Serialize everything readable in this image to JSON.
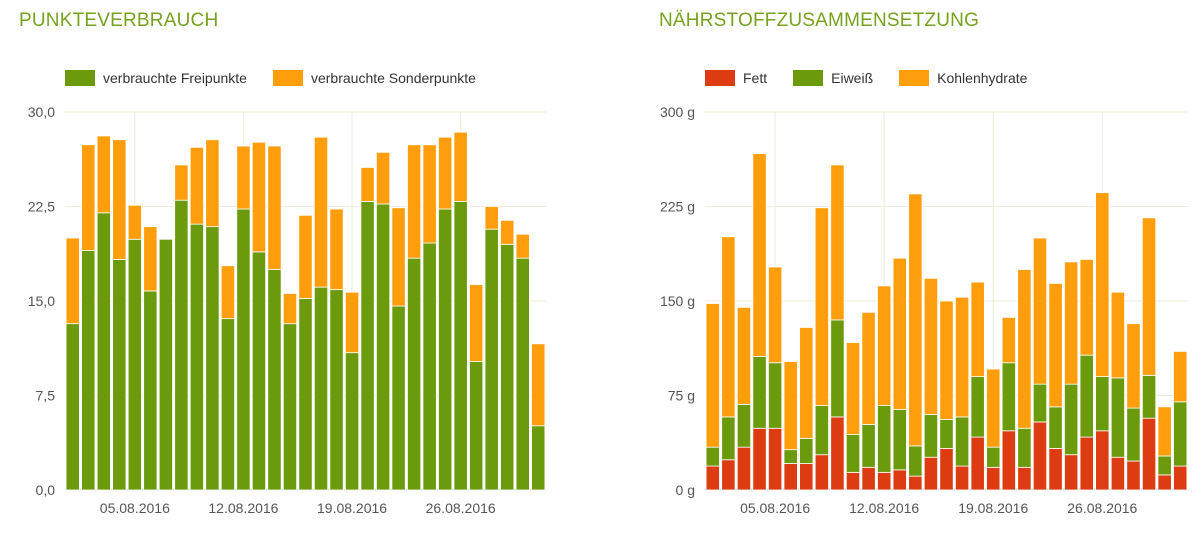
{
  "chart_data": [
    {
      "type": "bar",
      "stacked": true,
      "title": "PUNKTEVERBRAUCH",
      "xlabel": "",
      "ylabel": "",
      "ylim": [
        0,
        30
      ],
      "yticks": [
        "0,0",
        "7,5",
        "15,0",
        "22,5",
        "30,0"
      ],
      "xticks": [
        {
          "label": "05.08.2016",
          "index": 4
        },
        {
          "label": "12.08.2016",
          "index": 11
        },
        {
          "label": "19.08.2016",
          "index": 18
        },
        {
          "label": "26.08.2016",
          "index": 25
        }
      ],
      "grid": true,
      "legend_position": "top-left",
      "series": [
        {
          "name": "verbrauchte Freipunkte",
          "color": "#6b9a0c",
          "values": [
            13.2,
            19.0,
            22.0,
            18.3,
            19.9,
            15.8,
            19.9,
            23.0,
            21.1,
            20.9,
            13.6,
            22.3,
            18.9,
            17.5,
            13.2,
            15.2,
            16.1,
            15.9,
            10.9,
            22.9,
            22.7,
            14.6,
            18.4,
            19.6,
            22.3,
            22.9,
            10.2,
            20.7,
            19.5,
            18.4,
            5.1
          ]
        },
        {
          "name": "verbrauchte Sonderpunkte",
          "color": "#ff9e0d",
          "values": [
            6.8,
            8.4,
            6.1,
            9.5,
            2.7,
            5.1,
            0.0,
            2.8,
            6.1,
            6.9,
            4.2,
            5.0,
            8.7,
            9.8,
            2.4,
            6.6,
            11.9,
            6.4,
            4.8,
            2.7,
            4.1,
            7.8,
            9.0,
            7.8,
            5.7,
            5.5,
            6.1,
            1.8,
            1.9,
            1.9,
            6.5
          ]
        }
      ]
    },
    {
      "type": "bar",
      "stacked": true,
      "title": "NÄHRSTOFFZUSAMMENSETZUNG",
      "xlabel": "",
      "ylabel": "",
      "ylim": [
        0,
        300
      ],
      "yticks": [
        "0 g",
        "75 g",
        "150 g",
        "225 g",
        "300 g"
      ],
      "xticks": [
        {
          "label": "05.08.2016",
          "index": 4
        },
        {
          "label": "12.08.2016",
          "index": 11
        },
        {
          "label": "19.08.2016",
          "index": 18
        },
        {
          "label": "26.08.2016",
          "index": 25
        }
      ],
      "grid": true,
      "legend_position": "top-left",
      "series": [
        {
          "name": "Fett",
          "color": "#dd3c12",
          "values": [
            19,
            24,
            34,
            49,
            49,
            21,
            21,
            28,
            58,
            14,
            18,
            14,
            16,
            11,
            26,
            33,
            19,
            42,
            18,
            47,
            18,
            54,
            33,
            28,
            42,
            47,
            26,
            23,
            57,
            12,
            19
          ]
        },
        {
          "name": "Eiweiß",
          "color": "#6b9a0c",
          "values": [
            15,
            34,
            34,
            57,
            52,
            11,
            20,
            39,
            77,
            30,
            34,
            53,
            48,
            24,
            34,
            23,
            39,
            48,
            16,
            54,
            31,
            30,
            33,
            56,
            65,
            43,
            63,
            42,
            34,
            15,
            51
          ]
        },
        {
          "name": "Kohlenhydrate",
          "color": "#ff9e0d",
          "values": [
            114,
            143,
            77,
            161,
            76,
            70,
            88,
            157,
            123,
            73,
            89,
            95,
            120,
            200,
            108,
            94,
            95,
            75,
            62,
            36,
            126,
            116,
            98,
            97,
            76,
            146,
            68,
            67,
            125,
            39,
            40
          ]
        }
      ]
    }
  ]
}
